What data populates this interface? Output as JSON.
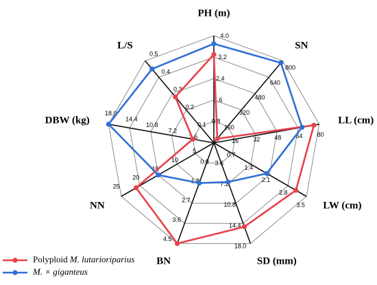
{
  "chart_data": {
    "type": "radar",
    "title": "",
    "axes": [
      {
        "label": "PH (m)",
        "max": 4.0,
        "ticks": [
          "0.8",
          "1.6",
          "2.4",
          "3.2",
          "4.0"
        ]
      },
      {
        "label": "SN",
        "max": 800,
        "ticks": [
          "160",
          "320",
          "480",
          "640",
          "800"
        ]
      },
      {
        "label": "LL (cm)",
        "max": 80,
        "ticks": [
          "16",
          "32",
          "48",
          "64",
          "80"
        ]
      },
      {
        "label": "LW (cm)",
        "max": 3.5,
        "ticks": [
          "0.7",
          "1.4",
          "2.1",
          "2.8",
          "3.5"
        ]
      },
      {
        "label": "SD (mm)",
        "max": 18.0,
        "ticks": [
          "3.6",
          "7.2",
          "10.8",
          "14.4",
          "18.0"
        ]
      },
      {
        "label": "BN",
        "max": 4.5,
        "ticks": [
          "0.9",
          "1.8",
          "2.7",
          "3.6",
          "4.5"
        ]
      },
      {
        "label": "NN",
        "max": 25,
        "ticks": [
          "5",
          "10",
          "15",
          "20",
          "25"
        ]
      },
      {
        "label": "DBW (kg)",
        "max": 18.0,
        "ticks": [
          "3.6",
          "7.2",
          "10.8",
          "14.4",
          "18.0"
        ]
      },
      {
        "label": "L/S",
        "max": 0.5,
        "ticks": [
          "0.1",
          "0.2",
          "0.3",
          "0.4",
          "0.5"
        ]
      }
    ],
    "levels": 5,
    "series": [
      {
        "name": "Polyploid M. lutarioriparius",
        "name_roman": "Polyploid ",
        "name_italic": "M. lutarioriparius",
        "color": "#e8424a",
        "values": [
          3.3,
          40,
          76,
          3.1,
          15.0,
          4.5,
          21,
          3.6,
          0.28
        ]
      },
      {
        "name": "M. × giganteus",
        "name_roman": "",
        "name_italic": "M. × giganteus",
        "color": "#2f6fd6",
        "values": [
          3.7,
          780,
          67,
          2.0,
          7.0,
          1.8,
          15,
          18.0,
          0.45
        ]
      }
    ]
  }
}
